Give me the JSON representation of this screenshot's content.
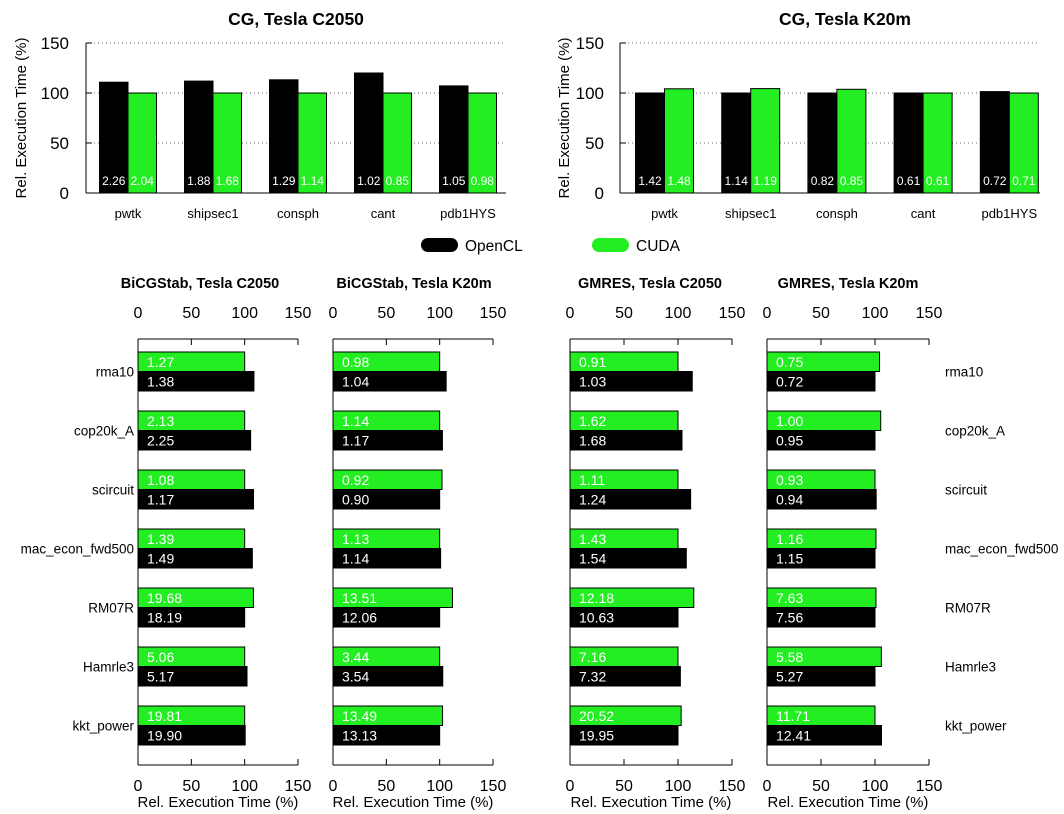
{
  "legend": {
    "items": [
      {
        "label": "OpenCL",
        "color": "#000000"
      },
      {
        "label": "CUDA",
        "color": "#22ee22"
      }
    ]
  },
  "chart_data": [
    {
      "type": "bar",
      "orientation": "vertical",
      "title": "CG, Tesla C2050",
      "ylabel": "Rel. Execution Time (%)",
      "ylim": [
        0,
        150
      ],
      "yticks": [
        0,
        50,
        100,
        150
      ],
      "grid": true,
      "categories": [
        "pwtk",
        "shipsec1",
        "consph",
        "cant",
        "pdb1HYS"
      ],
      "series": [
        {
          "name": "OpenCL",
          "color": "#000000",
          "values": [
            110.8,
            111.9,
            113.2,
            120.0,
            107.1
          ],
          "labels": [
            "2.26",
            "1.88",
            "1.29",
            "1.02",
            "1.05"
          ]
        },
        {
          "name": "CUDA",
          "color": "#22ee22",
          "values": [
            100,
            100,
            100,
            100,
            100
          ],
          "labels": [
            "2.04",
            "1.68",
            "1.14",
            "0.85",
            "0.98"
          ]
        }
      ]
    },
    {
      "type": "bar",
      "orientation": "vertical",
      "title": "CG, Tesla K20m",
      "ylabel": "Rel. Execution Time (%)",
      "ylim": [
        0,
        150
      ],
      "yticks": [
        0,
        50,
        100,
        150
      ],
      "grid": true,
      "categories": [
        "pwtk",
        "shipsec1",
        "consph",
        "cant",
        "pdb1HYS"
      ],
      "series": [
        {
          "name": "OpenCL",
          "color": "#000000",
          "values": [
            100,
            100,
            100,
            100,
            101.4
          ],
          "labels": [
            "1.42",
            "1.14",
            "0.82",
            "0.61",
            "0.72"
          ]
        },
        {
          "name": "CUDA",
          "color": "#22ee22",
          "values": [
            104.2,
            104.4,
            103.7,
            100,
            100
          ],
          "labels": [
            "1.48",
            "1.19",
            "0.85",
            "0.61",
            "0.71"
          ]
        }
      ]
    },
    {
      "type": "bar",
      "orientation": "horizontal",
      "title": "BiCGStab, Tesla C2050",
      "xlabel": "Rel. Execution Time (%)",
      "xlim": [
        0,
        150
      ],
      "xticks": [
        0,
        50,
        100,
        150
      ],
      "grid": false,
      "categories": [
        "rma10",
        "cop20k_A",
        "scircuit",
        "mac_econ_fwd500",
        "RM07R",
        "Hamrle3",
        "kkt_power"
      ],
      "series": [
        {
          "name": "CUDA",
          "color": "#22ee22",
          "values": [
            100,
            100,
            100,
            100,
            108.2,
            100,
            100
          ],
          "labels": [
            "1.27",
            "2.13",
            "1.08",
            "1.39",
            "19.68",
            "5.06",
            "19.81"
          ]
        },
        {
          "name": "OpenCL",
          "color": "#000000",
          "values": [
            108.7,
            105.6,
            108.3,
            107.2,
            100,
            102.2,
            100.5
          ],
          "labels": [
            "1.38",
            "2.25",
            "1.17",
            "1.49",
            "18.19",
            "5.17",
            "19.90"
          ]
        }
      ]
    },
    {
      "type": "bar",
      "orientation": "horizontal",
      "title": "BiCGStab, Tesla K20m",
      "xlabel": "Rel. Execution Time (%)",
      "xlim": [
        0,
        150
      ],
      "xticks": [
        0,
        50,
        100,
        150
      ],
      "grid": false,
      "categories": [
        "rma10",
        "cop20k_A",
        "scircuit",
        "mac_econ_fwd500",
        "RM07R",
        "Hamrle3",
        "kkt_power"
      ],
      "series": [
        {
          "name": "CUDA",
          "color": "#22ee22",
          "values": [
            100,
            100,
            102.2,
            100,
            112.0,
            100,
            102.7
          ],
          "labels": [
            "0.98",
            "1.14",
            "0.92",
            "1.13",
            "13.51",
            "3.44",
            "13.49"
          ]
        },
        {
          "name": "OpenCL",
          "color": "#000000",
          "values": [
            106.1,
            102.6,
            100,
            100.9,
            100,
            102.9,
            100
          ],
          "labels": [
            "1.04",
            "1.17",
            "0.90",
            "1.14",
            "12.06",
            "3.54",
            "13.13"
          ]
        }
      ]
    },
    {
      "type": "bar",
      "orientation": "horizontal",
      "title": "GMRES, Tesla C2050",
      "xlabel": "Rel. Execution Time (%)",
      "xlim": [
        0,
        150
      ],
      "xticks": [
        0,
        50,
        100,
        150
      ],
      "grid": false,
      "categories": [
        "rma10",
        "cop20k_A",
        "scircuit",
        "mac_econ_fwd500",
        "RM07R",
        "Hamrle3",
        "kkt_power"
      ],
      "series": [
        {
          "name": "CUDA",
          "color": "#22ee22",
          "values": [
            100,
            100,
            100,
            100,
            114.6,
            100,
            102.9
          ],
          "labels": [
            "0.91",
            "1.62",
            "1.11",
            "1.43",
            "12.18",
            "7.16",
            "20.52"
          ]
        },
        {
          "name": "OpenCL",
          "color": "#000000",
          "values": [
            113.2,
            103.7,
            111.7,
            107.7,
            100,
            102.2,
            100
          ],
          "labels": [
            "1.03",
            "1.68",
            "1.24",
            "1.54",
            "10.63",
            "7.32",
            "19.95"
          ]
        }
      ]
    },
    {
      "type": "bar",
      "orientation": "horizontal",
      "title": "GMRES, Tesla K20m",
      "xlabel": "Rel. Execution Time (%)",
      "xlim": [
        0,
        150
      ],
      "xticks": [
        0,
        50,
        100,
        150
      ],
      "grid": false,
      "categories": [
        "rma10",
        "cop20k_A",
        "scircuit",
        "mac_econ_fwd500",
        "RM07R",
        "Hamrle3",
        "kkt_power"
      ],
      "series": [
        {
          "name": "CUDA",
          "color": "#22ee22",
          "values": [
            104.2,
            105.3,
            100,
            100.9,
            100.9,
            105.9,
            100
          ],
          "labels": [
            "0.75",
            "1.00",
            "0.93",
            "1.16",
            "7.63",
            "5.58",
            "11.71"
          ]
        },
        {
          "name": "OpenCL",
          "color": "#000000",
          "values": [
            100,
            100,
            101.1,
            100,
            100,
            100,
            106.0
          ],
          "labels": [
            "0.72",
            "0.95",
            "0.94",
            "1.15",
            "7.56",
            "5.27",
            "12.41"
          ]
        }
      ]
    }
  ]
}
